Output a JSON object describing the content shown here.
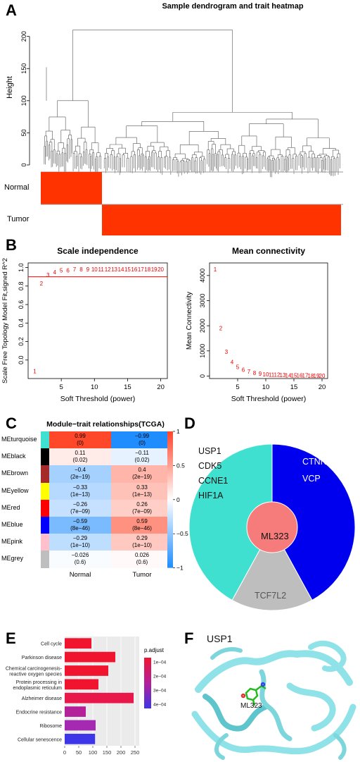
{
  "panel_labels": [
    "A",
    "B",
    "C",
    "D",
    "E",
    "F"
  ],
  "panel_a": {
    "title": "Sample dendrogram and trait heatmap",
    "ylabel": "Height",
    "yticks": [
      "0",
      "50",
      "100",
      "150",
      "200"
    ],
    "traits": [
      "Normal",
      "Tumor"
    ],
    "colors": {
      "trait": "#ff3300",
      "tree": "#555555"
    }
  },
  "chart_data": [
    {
      "type": "scatter",
      "title": "Scale independence",
      "xlabel": "Soft Threshold (power)",
      "ylabel": "Scale Free Topology Model Fit,signed R^2",
      "xlim": [
        0,
        21
      ],
      "ylim": [
        -0.2,
        1.05
      ],
      "xticks": [
        5,
        10,
        15,
        20
      ],
      "yticks": [
        0.0,
        0.2,
        0.4,
        0.6,
        0.8,
        1.0
      ],
      "hline": 0.9,
      "x": [
        1,
        2,
        3,
        4,
        5,
        6,
        7,
        8,
        9,
        10,
        11,
        12,
        13,
        14,
        15,
        16,
        17,
        18,
        19,
        20
      ],
      "y": [
        -0.12,
        0.83,
        0.92,
        0.95,
        0.97,
        0.97,
        0.98,
        0.98,
        0.98,
        0.98,
        0.98,
        0.98,
        0.98,
        0.98,
        0.98,
        0.98,
        0.98,
        0.98,
        0.98,
        0.98
      ],
      "labels": [
        "1",
        "2",
        "3",
        "4",
        "5",
        "6",
        "7",
        "8",
        "9",
        "10",
        "11",
        "12",
        "13",
        "14",
        "15",
        "16",
        "17",
        "18",
        "19",
        "20"
      ]
    },
    {
      "type": "scatter",
      "title": "Mean connectivity",
      "xlabel": "Soft Threshold (power)",
      "ylabel": "Mean Connectivity",
      "xlim": [
        0,
        21
      ],
      "ylim": [
        -100,
        4500
      ],
      "xticks": [
        5,
        10,
        15,
        20
      ],
      "yticks": [
        0,
        1000,
        2000,
        3000,
        4000
      ],
      "x": [
        1,
        2,
        3,
        4,
        5,
        6,
        7,
        8,
        9,
        10,
        11,
        12,
        13,
        14,
        15,
        16,
        17,
        18,
        19,
        20
      ],
      "y": [
        4250,
        1900,
        960,
        560,
        360,
        250,
        180,
        130,
        100,
        75,
        60,
        48,
        40,
        33,
        28,
        24,
        20,
        17,
        15,
        13
      ],
      "labels": [
        "1",
        "2",
        "3",
        "4",
        "5",
        "6",
        "7",
        "8",
        "9",
        "10",
        "11",
        "12",
        "13",
        "14",
        "15",
        "16",
        "17",
        "18",
        "19",
        "20"
      ]
    },
    {
      "type": "heatmap",
      "title": "Module−trait relationships(TCGA)",
      "rows": [
        "MEturquoise",
        "MEblack",
        "MEbrown",
        "MEyellow",
        "MEred",
        "MEblue",
        "MEpink",
        "MEgrey"
      ],
      "row_colors": [
        "#40e0d0",
        "#000000",
        "#a52a2a",
        "#ffff00",
        "#ff0000",
        "#0000ff",
        "#ffc0cb",
        "#bebebe"
      ],
      "columns": [
        "Normal",
        "Tumor"
      ],
      "values": [
        [
          0.99,
          -0.99
        ],
        [
          0.11,
          -0.11
        ],
        [
          -0.4,
          0.4
        ],
        [
          -0.33,
          0.33
        ],
        [
          -0.26,
          0.26
        ],
        [
          -0.59,
          0.59
        ],
        [
          -0.29,
          0.29
        ],
        [
          -0.026,
          0.026
        ]
      ],
      "cell_text": [
        [
          "0.99",
          "−0.99"
        ],
        [
          "0.11",
          "−0.11"
        ],
        [
          "−0.4",
          "0.4"
        ],
        [
          "−0.33",
          "0.33"
        ],
        [
          "−0.26",
          "0.26"
        ],
        [
          "−0.59",
          "0.59"
        ],
        [
          "−0.29",
          "0.29"
        ],
        [
          "−0.026",
          "0.026"
        ]
      ],
      "cell_p": [
        [
          "(0)",
          "(0)"
        ],
        [
          "(0.02)",
          "(0.02)"
        ],
        [
          "(2e−19)",
          "(2e−19)"
        ],
        [
          "(1e−13)",
          "(1e−13)"
        ],
        [
          "(7e−09)",
          "(7e−09)"
        ],
        [
          "(8e−46)",
          "(8e−46)"
        ],
        [
          "(1e−10)",
          "(1e−10)"
        ],
        [
          "(0.6)",
          "(0.6)"
        ]
      ],
      "scale_ticks": [
        "1",
        "0.5",
        "0",
        "−0.5",
        "−1"
      ],
      "scale_values": [
        1,
        0.5,
        0,
        -0.5,
        -1
      ]
    },
    {
      "type": "pie",
      "title": "",
      "center": "ML323",
      "slices": [
        {
          "labels": [
            "USP1",
            "CDK5",
            "CCNE1",
            "HIF1A"
          ],
          "value": 0.42,
          "color": "#40e0d0"
        },
        {
          "labels": [
            "CTNNB1",
            "VCP"
          ],
          "value": 0.42,
          "color": "#0000ee"
        },
        {
          "labels": [
            "TCF7L2"
          ],
          "value": 0.16,
          "color": "#bebebe"
        }
      ]
    },
    {
      "type": "bar",
      "title": "",
      "categories": [
        "Cell cycle",
        "Parkinson disease",
        "Chemical carcinogenesis-\nreactive oxygen species",
        "Protein processing in\nendoplasmic reticulum",
        "Alzheimer disease",
        "Endocrine resistance",
        "Ribosome",
        "Cellular senescence"
      ],
      "values": [
        95,
        180,
        155,
        120,
        245,
        75,
        110,
        108
      ],
      "p_adjust": [
        8e-05,
        8e-05,
        8e-05,
        8e-05,
        0.00012,
        0.00029,
        0.00031,
        0.00045
      ],
      "colors": [
        "#f0142f",
        "#f0142f",
        "#f0142f",
        "#f0142f",
        "#e8184a",
        "#b41f9a",
        "#a42ab2",
        "#3d35e8"
      ],
      "xticks": [
        0,
        50,
        100,
        150,
        200,
        250
      ],
      "xlim": [
        0,
        260
      ],
      "legend_title": "p.adjust",
      "legend_ticks": [
        "1e−04",
        "2e−04",
        "3e−04",
        "4e−04"
      ]
    }
  ],
  "panel_f": {
    "protein_label": "USP1",
    "ligand_label": "ML323",
    "colors": {
      "ribbon": "#8fe3e8",
      "ribbon_dark": "#5fc5cc",
      "ligand": "#22bb22"
    }
  }
}
